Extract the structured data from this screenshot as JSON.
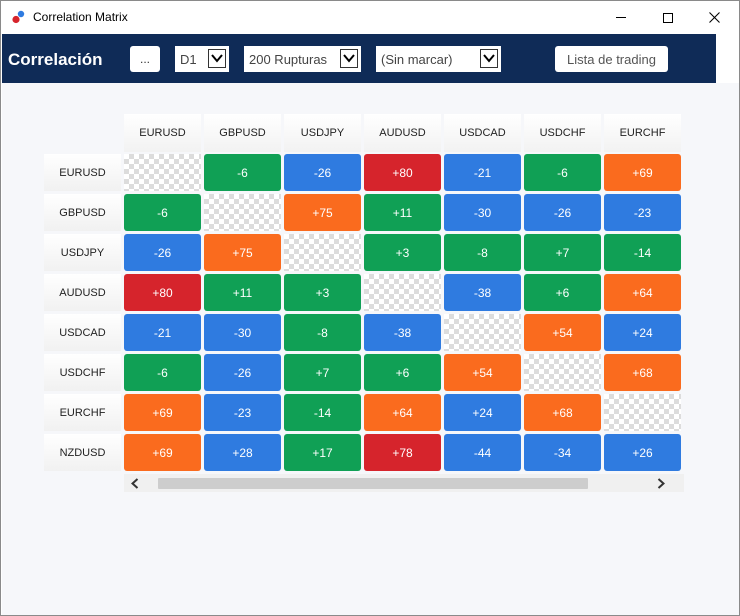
{
  "window": {
    "title": "Correlation Matrix"
  },
  "toolbar": {
    "title": "Correlación",
    "more_label": "...",
    "period_value": "D1",
    "breaks_value": "200 Rupturas",
    "mark_value": "(Sin marcar)",
    "trading_list_label": "Lista de trading"
  },
  "matrix": {
    "columns": [
      "EURUSD",
      "GBPUSD",
      "USDJPY",
      "AUDUSD",
      "USDCAD",
      "USDCHF",
      "EURCHF"
    ],
    "rows": [
      {
        "label": "EURUSD",
        "cells": [
          "",
          "-6",
          "-26",
          "+80",
          "-21",
          "-6",
          "+69"
        ]
      },
      {
        "label": "GBPUSD",
        "cells": [
          "-6",
          "",
          "+75",
          "+11",
          "-30",
          "-26",
          "-23"
        ]
      },
      {
        "label": "USDJPY",
        "cells": [
          "-26",
          "+75",
          "",
          "+3",
          "-8",
          "+7",
          "-14"
        ]
      },
      {
        "label": "AUDUSD",
        "cells": [
          "+80",
          "+11",
          "+3",
          "",
          "-38",
          "+6",
          "+64"
        ]
      },
      {
        "label": "USDCAD",
        "cells": [
          "-21",
          "-30",
          "-8",
          "-38",
          "",
          "+54",
          "+24"
        ]
      },
      {
        "label": "USDCHF",
        "cells": [
          "-6",
          "-26",
          "+7",
          "+6",
          "+54",
          "",
          "+68"
        ]
      },
      {
        "label": "EURCHF",
        "cells": [
          "+69",
          "-23",
          "-14",
          "+64",
          "+24",
          "+68",
          ""
        ]
      },
      {
        "label": "NZDUSD",
        "cells": [
          "+69",
          "+28",
          "+17",
          "+78",
          "-44",
          "-34",
          "+26"
        ]
      }
    ],
    "colors": {
      "green": "#10a055",
      "blue": "#2f7be0",
      "orange": "#fa6b1e",
      "red": "#d6242c"
    },
    "cell_colors": [
      [
        "diag",
        "green",
        "blue",
        "red",
        "blue",
        "green",
        "orange"
      ],
      [
        "green",
        "diag",
        "orange",
        "green",
        "blue",
        "blue",
        "blue"
      ],
      [
        "blue",
        "orange",
        "diag",
        "green",
        "green",
        "green",
        "green"
      ],
      [
        "red",
        "green",
        "green",
        "diag",
        "blue",
        "green",
        "orange"
      ],
      [
        "blue",
        "blue",
        "green",
        "blue",
        "diag",
        "orange",
        "blue"
      ],
      [
        "green",
        "blue",
        "green",
        "green",
        "orange",
        "diag",
        "orange"
      ],
      [
        "orange",
        "blue",
        "green",
        "orange",
        "blue",
        "orange",
        "diag"
      ],
      [
        "orange",
        "blue",
        "green",
        "red",
        "blue",
        "blue",
        "blue"
      ]
    ]
  },
  "icons": {
    "app": "correlation-app-icon",
    "minimize": "minimize-icon",
    "maximize": "maximize-icon",
    "close": "close-icon",
    "dropdown": "chevron-down-icon",
    "scroll_left": "chevron-left-icon",
    "scroll_right": "chevron-right-icon"
  }
}
